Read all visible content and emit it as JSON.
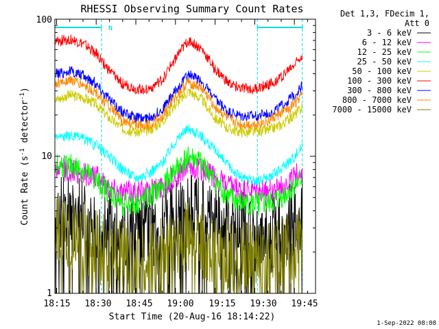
{
  "chart_data": {
    "type": "line",
    "title": "RHESSI Observing Summary Count Rates",
    "xlabel": "Start Time (20-Aug-16 18:14:22)",
    "ylabel": "Count Rate (s⁻¹ detector⁻¹)",
    "ylabel_main": "Count Rate (s",
    "ylabel_sup1": "-1",
    "ylabel_mid": " detector",
    "ylabel_sup2": "-1",
    "ylabel_end": ")",
    "y_scale": "log",
    "ylim": [
      1,
      100
    ],
    "xlim": [
      "18:14:22",
      "19:53:00"
    ],
    "x_ticks": [
      "18:15",
      "18:30",
      "18:45",
      "19:00",
      "19:15",
      "19:30",
      "19:45"
    ],
    "y_ticks": [
      "1",
      "10",
      "100"
    ],
    "legend_header": [
      "Det 1,3, FDecim 1,",
      "Att 0"
    ],
    "legend_placement": "right",
    "timestamp": "1-Sep-2022 08:08",
    "night_marker": "N",
    "night_intervals": [
      [
        "18:14:22",
        "18:32:00"
      ],
      [
        "19:31:00",
        "19:48:00"
      ]
    ],
    "x_points": [
      "18:15",
      "18:20",
      "18:25",
      "18:30",
      "18:35",
      "18:40",
      "18:45",
      "18:50",
      "18:55",
      "19:00",
      "19:05",
      "19:10",
      "19:15",
      "19:20",
      "19:25",
      "19:30",
      "19:35",
      "19:40",
      "19:45",
      "19:48"
    ],
    "series": [
      {
        "name": "3 - 6 keV",
        "color": "#000000",
        "values": [
          4,
          4,
          3.5,
          3,
          3,
          2.5,
          2.5,
          3,
          3,
          3.5,
          4,
          4,
          3.5,
          3,
          3,
          2.5,
          2.5,
          3,
          3.5,
          4
        ]
      },
      {
        "name": "6 - 12 keV",
        "color": "#ff00ff",
        "values": [
          8,
          8,
          7.5,
          7,
          6,
          5.5,
          5.5,
          5.5,
          6,
          7,
          8.5,
          8,
          7,
          6,
          5.5,
          5.5,
          5.5,
          6,
          7,
          8
        ]
      },
      {
        "name": "12 - 25 keV",
        "color": "#00ff00",
        "values": [
          8.5,
          8.5,
          8,
          6.5,
          5.5,
          4.5,
          4.5,
          5,
          6,
          8,
          10,
          9,
          6.5,
          5,
          4.5,
          4.5,
          4.5,
          5,
          6,
          7
        ]
      },
      {
        "name": "25 - 50 keV",
        "color": "#00ffff",
        "values": [
          14,
          14,
          13.5,
          12,
          10,
          8,
          7,
          7.5,
          9,
          13,
          16,
          14,
          11,
          8.5,
          7,
          6.5,
          7,
          8,
          10,
          12
        ]
      },
      {
        "name": "50 - 100 keV",
        "color": "#cccc00",
        "values": [
          26,
          28,
          27,
          24,
          19,
          16,
          15,
          15.5,
          18,
          24,
          30,
          26,
          19,
          16,
          15,
          15,
          15.5,
          17,
          20,
          23
        ]
      },
      {
        "name": "100 - 300 keV",
        "color": "#ff0000",
        "values": [
          68,
          72,
          66,
          56,
          42,
          34,
          31,
          31,
          36,
          52,
          70,
          60,
          43,
          34,
          31,
          31,
          33,
          38,
          47,
          56
        ]
      },
      {
        "name": "300 - 800 keV",
        "color": "#0000ff",
        "values": [
          40,
          42,
          39,
          34,
          26,
          21,
          19,
          19,
          22,
          30,
          40,
          35,
          26,
          21,
          19.5,
          19.5,
          20.5,
          23,
          28,
          33
        ]
      },
      {
        "name": "800 - 7000 keV",
        "color": "#ff8800",
        "values": [
          34,
          36,
          33,
          29,
          23,
          18,
          17,
          17,
          19.5,
          27,
          35,
          31,
          23,
          18.5,
          17,
          17,
          18,
          20.5,
          24,
          28
        ]
      },
      {
        "name": "7000 - 15000 keV",
        "color": "#808000",
        "values": [
          2.8,
          2.8,
          2.5,
          2.2,
          2,
          1.8,
          1.7,
          1.8,
          1.9,
          2.2,
          2.6,
          2.4,
          2.1,
          1.9,
          1.8,
          1.7,
          1.7,
          1.9,
          2.2,
          2.5
        ]
      }
    ]
  }
}
